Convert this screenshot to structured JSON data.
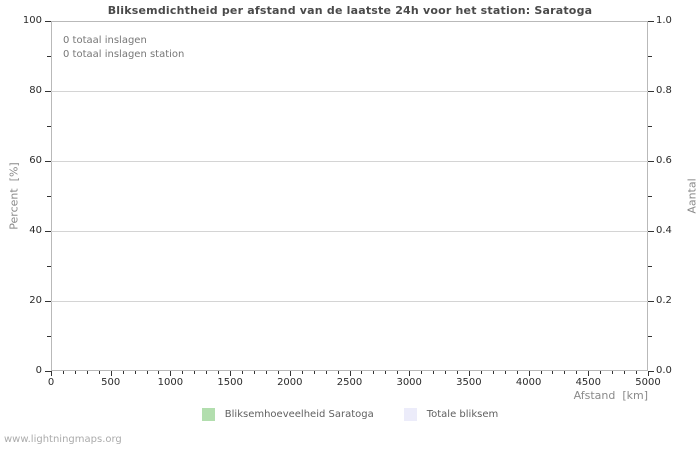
{
  "page": {
    "title": "Bliksemdichtheid per afstand van de laatste 24h voor het station: Saratoga",
    "watermark": "www.lightningmaps.org"
  },
  "annotations": {
    "total_strikes": "0 totaal inslagen",
    "total_strikes_station": "0 totaal inslagen station"
  },
  "axes": {
    "x_label": "Afstand  [km]",
    "y_left_label": "Percent  [%]",
    "y_right_label": "Aantal"
  },
  "legend": {
    "items": [
      {
        "label": "Bliksemhoeveelheid Saratoga",
        "color": "#b2deae"
      },
      {
        "label": "Totale bliksem",
        "color": "#ececfa"
      }
    ]
  },
  "colors": {
    "grid": "#d4d4d4",
    "plot_border": "#b9b9b9",
    "tick": "#333333",
    "series_station": "#b2deae",
    "series_total": "#ececfa"
  },
  "chart_data": {
    "type": "bar",
    "title": "Bliksemdichtheid per afstand van de laatste 24h voor het station: Saratoga",
    "xlabel": "Afstand [km]",
    "ylabel": "Percent [%]",
    "ylabel_right": "Aantal",
    "xlim": [
      0,
      5000
    ],
    "ylim": [
      0,
      100
    ],
    "ylim_right": [
      0.0,
      1.0
    ],
    "x_major_ticks": [
      0,
      500,
      1000,
      1500,
      2000,
      2500,
      3000,
      3500,
      4000,
      4500,
      5000
    ],
    "x_minor_tick_step": 100,
    "y_left_major_ticks": [
      0,
      20,
      40,
      60,
      80,
      100
    ],
    "y_left_minor_tick_step": 10,
    "y_right_major_ticks": [
      0.0,
      0.2,
      0.4,
      0.6,
      0.8,
      1.0
    ],
    "y_right_minor_tick_step": 0.1,
    "grid": "horizontal-major-only",
    "legend_position": "bottom-center",
    "series": [
      {
        "name": "Bliksemhoeveelheid Saratoga",
        "color": "#b2deae",
        "values": []
      },
      {
        "name": "Totale bliksem",
        "color": "#ececfa",
        "values": []
      }
    ],
    "totals": {
      "totaal_inslagen": 0,
      "totaal_inslagen_station": 0
    }
  }
}
